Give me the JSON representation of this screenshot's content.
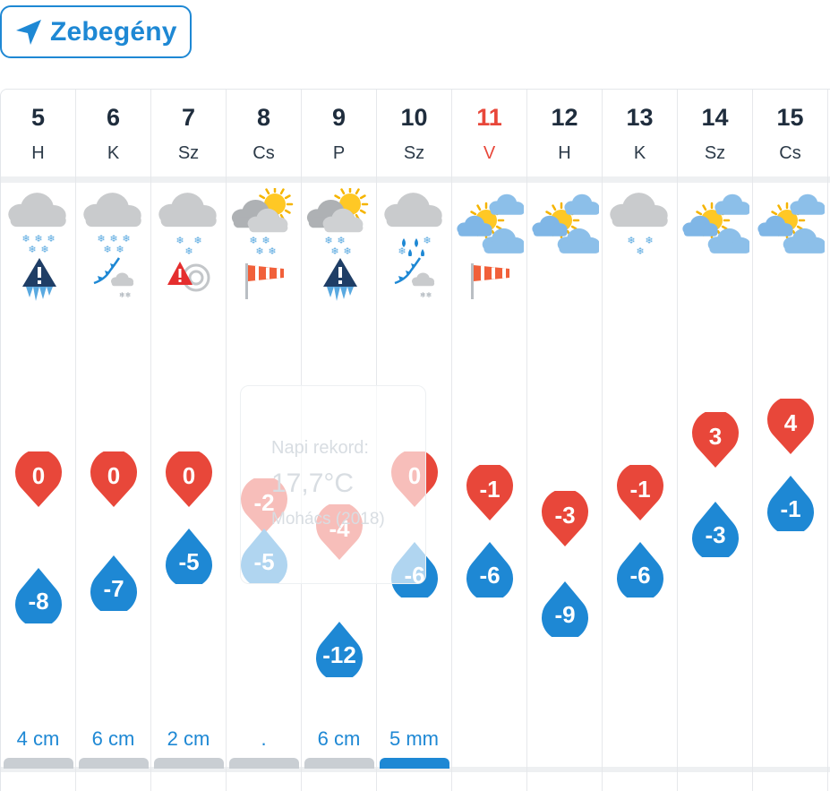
{
  "location": {
    "name": "Zebegény",
    "icon": "location-arrow-icon"
  },
  "days": [
    {
      "num": "5",
      "name": "H",
      "weekend": false,
      "weather": "snow-cloud",
      "warning": "ice-warning",
      "max": "0",
      "min": "-8",
      "precip": "4 cm",
      "bar": "gray"
    },
    {
      "num": "6",
      "name": "K",
      "weekend": false,
      "weather": "snow-cloud",
      "warning": "cold-front",
      "max": "0",
      "min": "-7",
      "precip": "6 cm",
      "bar": "gray"
    },
    {
      "num": "7",
      "name": "Sz",
      "weekend": false,
      "weather": "snow-cloud-light",
      "warning": "storm-warning",
      "max": "0",
      "min": "-5",
      "precip": "2 cm",
      "bar": "gray"
    },
    {
      "num": "8",
      "name": "Cs",
      "weekend": false,
      "weather": "sun-cloud-snow",
      "warning": "wind-sock",
      "max": "-2",
      "min": "-5",
      "precip": ".",
      "bar": "gray"
    },
    {
      "num": "9",
      "name": "P",
      "weekend": false,
      "weather": "sun-cloud-snow",
      "warning": "ice-warning",
      "max": "-4",
      "min": "-12",
      "precip": "6 cm",
      "bar": "gray"
    },
    {
      "num": "10",
      "name": "Sz",
      "weekend": false,
      "weather": "rain-snow-cloud",
      "warning": "cold-front",
      "max": "0",
      "min": "-6",
      "precip": "5 mm",
      "bar": "blue"
    },
    {
      "num": "11",
      "name": "V",
      "weekend": true,
      "weather": "sun-clouds",
      "warning": "wind-sock",
      "max": "-1",
      "min": "-6",
      "precip": "",
      "bar": "none"
    },
    {
      "num": "12",
      "name": "H",
      "weekend": false,
      "weather": "sun-clouds",
      "warning": "",
      "max": "-3",
      "min": "-9",
      "precip": "",
      "bar": "none"
    },
    {
      "num": "13",
      "name": "K",
      "weekend": false,
      "weather": "snow-cloud-light",
      "warning": "",
      "max": "-1",
      "min": "-6",
      "precip": "",
      "bar": "none"
    },
    {
      "num": "14",
      "name": "Sz",
      "weekend": false,
      "weather": "sun-clouds",
      "warning": "",
      "max": "3",
      "min": "-3",
      "precip": "",
      "bar": "none"
    },
    {
      "num": "15",
      "name": "Cs",
      "weekend": false,
      "weather": "sun-clouds",
      "warning": "",
      "max": "4",
      "min": "-1",
      "precip": "",
      "bar": "none"
    }
  ],
  "record": {
    "label": "Napi rekord:",
    "value": "17,7°C",
    "place": "Mohács (2018)"
  },
  "colors": {
    "accent": "#1e88d4",
    "max": "#e8473a",
    "min": "#1e88d4",
    "weekend": "#e8473a"
  }
}
